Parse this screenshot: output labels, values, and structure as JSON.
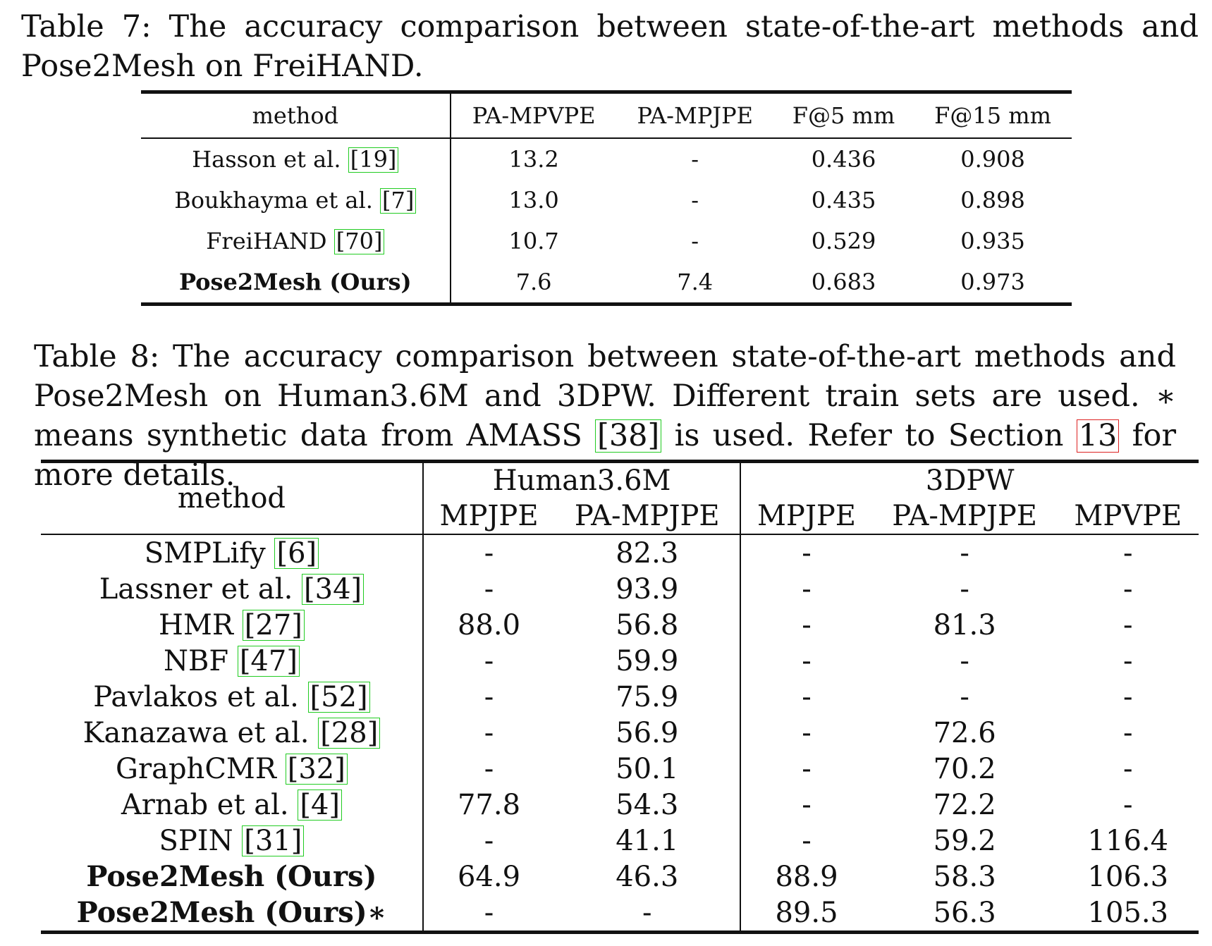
{
  "table7": {
    "caption_parts": [
      "Table 7: The accuracy comparison between state-of-the-art methods and Pose2Mesh on FreiHAND."
    ],
    "headers": [
      "method",
      "PA-MPVPE",
      "PA-MPJPE",
      "F@5 mm",
      "F@15 mm"
    ],
    "rows": [
      {
        "method": "Hasson et al.",
        "ref": "[19]",
        "cells": [
          "13.2",
          "-",
          "0.436",
          "0.908"
        ],
        "bold": false
      },
      {
        "method": "Boukhayma et al.",
        "ref": "[7]",
        "cells": [
          "13.0",
          "-",
          "0.435",
          "0.898"
        ],
        "bold": false
      },
      {
        "method": "FreiHAND",
        "ref": "[70]",
        "cells": [
          "10.7",
          "-",
          "0.529",
          "0.935"
        ],
        "bold": false
      },
      {
        "method": "Pose2Mesh (Ours)",
        "ref": "",
        "cells": [
          "7.6",
          "7.4",
          "0.683",
          "0.973"
        ],
        "bold": true
      }
    ]
  },
  "table8": {
    "caption_a": "Table 8: The accuracy comparison between state-of-the-art methods and Pose2Mesh on Human3.6M and 3DPW. Different train sets are used. ∗ means synthetic data from AMASS ",
    "caption_ref1": "[38]",
    "caption_b": " is used. Refer to Section ",
    "caption_ref2": "13",
    "caption_c": " for more details.",
    "group_headers": [
      "Human3.6M",
      "3DPW"
    ],
    "method_header": "method",
    "sub_headers": [
      "MPJPE",
      "PA-MPJPE",
      "MPJPE",
      "PA-MPJPE",
      "MPVPE"
    ],
    "rows": [
      {
        "method": "SMPLify",
        "ref": "[6]",
        "cells": [
          "-",
          "82.3",
          "-",
          "-",
          "-"
        ],
        "bold_cells": [],
        "bold_method": false
      },
      {
        "method": "Lassner et al.",
        "ref": "[34]",
        "cells": [
          "-",
          "93.9",
          "-",
          "-",
          "-"
        ],
        "bold_cells": [],
        "bold_method": false
      },
      {
        "method": "HMR",
        "ref": "[27]",
        "cells": [
          "88.0",
          "56.8",
          "-",
          "81.3",
          "-"
        ],
        "bold_cells": [],
        "bold_method": false
      },
      {
        "method": "NBF",
        "ref": "[47]",
        "cells": [
          "-",
          "59.9",
          "-",
          "-",
          "-"
        ],
        "bold_cells": [],
        "bold_method": false
      },
      {
        "method": "Pavlakos et al.",
        "ref": "[52]",
        "cells": [
          "-",
          "75.9",
          "-",
          "-",
          "-"
        ],
        "bold_cells": [],
        "bold_method": false
      },
      {
        "method": "Kanazawa et al.",
        "ref": "[28]",
        "cells": [
          "-",
          "56.9",
          "-",
          "72.6",
          "-"
        ],
        "bold_cells": [],
        "bold_method": false
      },
      {
        "method": "GraphCMR",
        "ref": "[32]",
        "cells": [
          "-",
          "50.1",
          "-",
          "70.2",
          "-"
        ],
        "bold_cells": [],
        "bold_method": false
      },
      {
        "method": "Arnab et al.",
        "ref": "[4]",
        "cells": [
          "77.8",
          "54.3",
          "-",
          "72.2",
          "-"
        ],
        "bold_cells": [],
        "bold_method": false
      },
      {
        "method": "SPIN",
        "ref": "[31]",
        "cells": [
          "-",
          "41.1",
          "-",
          "59.2",
          "116.4"
        ],
        "bold_cells": [
          1
        ],
        "bold_method": false
      },
      {
        "method": "Pose2Mesh (Ours)",
        "ref": "",
        "cells": [
          "64.9",
          "46.3",
          "88.9",
          "58.3",
          "106.3"
        ],
        "bold_cells": [
          0,
          2
        ],
        "bold_method": true
      },
      {
        "method": "Pose2Mesh (Ours)∗",
        "ref": "",
        "cells": [
          "-",
          "-",
          "89.5",
          "56.3",
          "105.3"
        ],
        "bold_cells": [
          3,
          4
        ],
        "bold_method": true
      }
    ]
  }
}
